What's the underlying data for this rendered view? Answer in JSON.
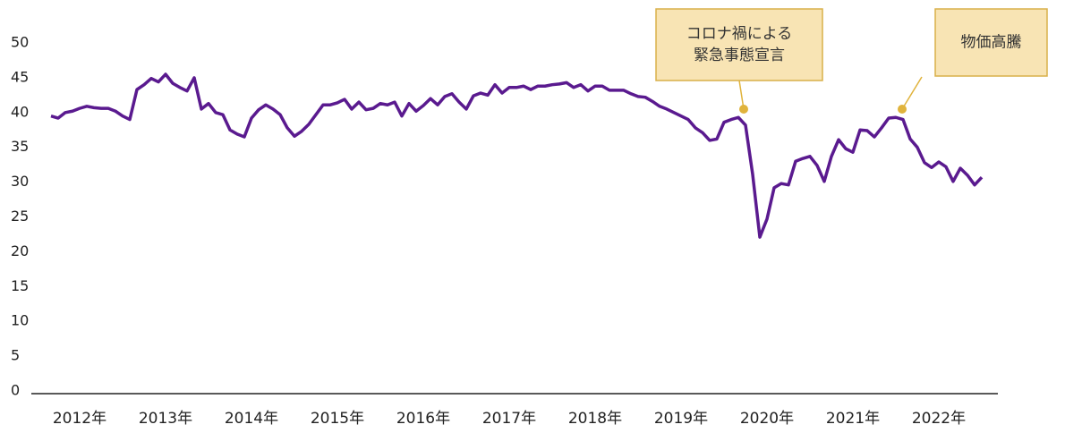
{
  "chart_data": {
    "type": "line",
    "categories": [
      null,
      null,
      null,
      null,
      "2012年",
      null,
      null,
      null,
      null,
      null,
      null,
      null,
      null,
      null,
      null,
      null,
      "2013年",
      null,
      null,
      null,
      null,
      null,
      null,
      null,
      null,
      null,
      null,
      null,
      "2014年",
      null,
      null,
      null,
      null,
      null,
      null,
      null,
      null,
      null,
      null,
      null,
      "2015年",
      null,
      null,
      null,
      null,
      null,
      null,
      null,
      null,
      null,
      null,
      null,
      "2016年",
      null,
      null,
      null,
      null,
      null,
      null,
      null,
      null,
      null,
      null,
      null,
      "2017年",
      null,
      null,
      null,
      null,
      null,
      null,
      null,
      null,
      null,
      null,
      null,
      "2018年",
      null,
      null,
      null,
      null,
      null,
      null,
      null,
      null,
      null,
      null,
      null,
      "2019年",
      null,
      null,
      null,
      null,
      null,
      null,
      null,
      null,
      null,
      null,
      null,
      "2020年",
      null,
      null,
      null,
      null,
      null,
      null,
      null,
      null,
      null,
      null,
      null,
      "2021年",
      null,
      null,
      null,
      null,
      null,
      null,
      null,
      null,
      null,
      null,
      null,
      "2022年",
      null,
      null,
      null,
      null,
      null,
      null
    ],
    "values": [
      39.5,
      39.2,
      40.0,
      40.2,
      40.6,
      40.9,
      40.7,
      40.6,
      40.6,
      40.2,
      39.5,
      39.0,
      43.3,
      44.0,
      44.9,
      44.4,
      45.5,
      44.2,
      43.6,
      43.1,
      45.0,
      40.5,
      41.3,
      40.0,
      39.7,
      37.5,
      36.9,
      36.5,
      39.2,
      40.4,
      41.1,
      40.5,
      39.7,
      37.8,
      36.6,
      37.3,
      38.3,
      39.7,
      41.1,
      41.1,
      41.4,
      41.9,
      40.5,
      41.5,
      40.4,
      40.6,
      41.3,
      41.1,
      41.5,
      39.5,
      41.3,
      40.2,
      41.0,
      42.0,
      41.1,
      42.3,
      42.7,
      41.5,
      40.5,
      42.4,
      42.8,
      42.5,
      44.0,
      42.8,
      43.6,
      43.6,
      43.8,
      43.3,
      43.8,
      43.8,
      44.0,
      44.1,
      44.3,
      43.6,
      44.0,
      43.1,
      43.8,
      43.8,
      43.2,
      43.2,
      43.2,
      42.7,
      42.3,
      42.2,
      41.6,
      40.9,
      40.5,
      40.0,
      39.5,
      39.0,
      37.8,
      37.1,
      36.0,
      36.2,
      38.6,
      39.0,
      39.3,
      38.2,
      31.1,
      22.1,
      24.7,
      29.2,
      29.8,
      29.6,
      33.0,
      33.4,
      33.7,
      32.4,
      30.1,
      33.7,
      36.1,
      34.8,
      34.3,
      37.5,
      37.4,
      36.5,
      37.8,
      39.2,
      39.3,
      39.0,
      36.2,
      35.0,
      32.8,
      32.1,
      32.9,
      32.2,
      30.1,
      32.0,
      31.0,
      29.6,
      30.7
    ],
    "color": "#5a1a8f",
    "ylim": [
      0,
      50
    ],
    "yticks": [
      0,
      5,
      10,
      15,
      20,
      25,
      30,
      35,
      40,
      45,
      50
    ],
    "grid": false,
    "annotations": [
      {
        "text": [
          "コロナ禍による",
          "緊急事態宣言"
        ]
      },
      {
        "text": [
          "物価高騰"
        ]
      }
    ]
  }
}
